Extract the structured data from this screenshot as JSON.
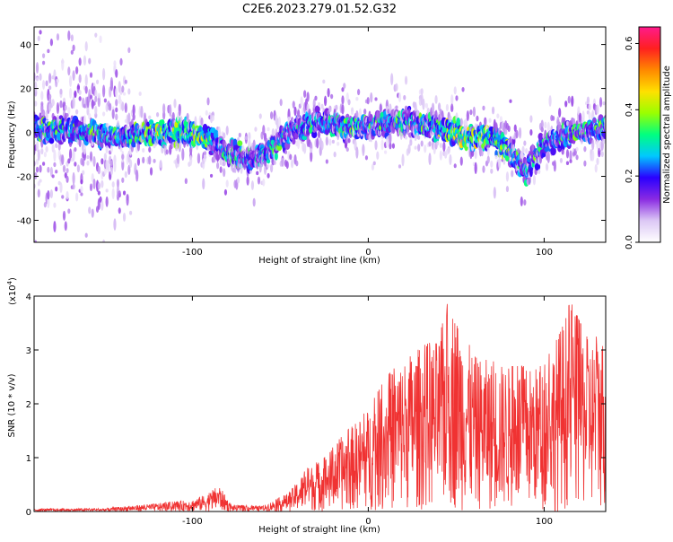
{
  "title": "C2E6.2023.279.01.52.G32",
  "chart_data": [
    {
      "type": "heatmap",
      "title": "C2E6.2023.279.01.52.G32",
      "xlabel": "Height of straight line (km)",
      "ylabel": "Frequency (Hz)",
      "xlim": [
        -190,
        135
      ],
      "ylim": [
        -50,
        48
      ],
      "xticks": [
        -100,
        0,
        100
      ],
      "xtick_labels": [
        "-100",
        "0",
        "100"
      ],
      "yticks": [
        -40,
        -20,
        0,
        20,
        40
      ],
      "ytick_labels": [
        "-40",
        "-20",
        "0",
        "20",
        "40"
      ],
      "colorbar": {
        "label": "Normalized spectral amplitude",
        "range": [
          0.0,
          0.65
        ],
        "ticks": [
          0.0,
          0.2,
          0.4,
          0.6
        ],
        "tick_labels": [
          "0.0",
          "0.2",
          "0.4",
          "0.6"
        ],
        "colormap": [
          "#ffffff",
          "#dcc8f5",
          "#8a2be2",
          "#2a00ff",
          "#00c8ff",
          "#00ff80",
          "#9aff00",
          "#ffe000",
          "#ff8800",
          "#ff2020",
          "#ff1a8c"
        ]
      },
      "band_center_hz": [
        {
          "x": -190,
          "y": 2
        },
        {
          "x": -160,
          "y": 0
        },
        {
          "x": -140,
          "y": -2
        },
        {
          "x": -125,
          "y": 0
        },
        {
          "x": -105,
          "y": 0
        },
        {
          "x": -90,
          "y": -3
        },
        {
          "x": -80,
          "y": -10
        },
        {
          "x": -65,
          "y": -12
        },
        {
          "x": -55,
          "y": -8
        },
        {
          "x": -45,
          "y": 0
        },
        {
          "x": -30,
          "y": 5
        },
        {
          "x": -15,
          "y": 3
        },
        {
          "x": 0,
          "y": 3
        },
        {
          "x": 20,
          "y": 5
        },
        {
          "x": 40,
          "y": 2
        },
        {
          "x": 55,
          "y": -2
        },
        {
          "x": 70,
          "y": -2
        },
        {
          "x": 80,
          "y": -8
        },
        {
          "x": 90,
          "y": -18
        },
        {
          "x": 100,
          "y": -5
        },
        {
          "x": 115,
          "y": 0
        },
        {
          "x": 135,
          "y": 2
        }
      ]
    },
    {
      "type": "line",
      "xlabel": "Height of straight line (km)",
      "ylabel": "SNR (10 * v/v)",
      "y_multiplier": "(x10",
      "y_multiplier_exp": "4",
      "xlim": [
        -190,
        135
      ],
      "ylim": [
        0,
        4
      ],
      "xticks": [
        -100,
        0,
        100
      ],
      "xtick_labels": [
        "-100",
        "0",
        "100"
      ],
      "yticks": [
        0,
        1,
        2,
        3,
        4
      ],
      "ytick_labels": [
        "0",
        "1",
        "2",
        "3",
        "4"
      ],
      "color": "#f03232",
      "envelope": [
        {
          "x": -190,
          "y": 0.05
        },
        {
          "x": -150,
          "y": 0.06
        },
        {
          "x": -120,
          "y": 0.15
        },
        {
          "x": -100,
          "y": 0.22
        },
        {
          "x": -90,
          "y": 0.35
        },
        {
          "x": -85,
          "y": 0.5
        },
        {
          "x": -78,
          "y": 0.12
        },
        {
          "x": -60,
          "y": 0.1
        },
        {
          "x": -45,
          "y": 0.35
        },
        {
          "x": -35,
          "y": 0.8
        },
        {
          "x": -25,
          "y": 1.0
        },
        {
          "x": -15,
          "y": 1.4
        },
        {
          "x": 0,
          "y": 1.9
        },
        {
          "x": 10,
          "y": 2.5
        },
        {
          "x": 25,
          "y": 3.0
        },
        {
          "x": 40,
          "y": 3.2
        },
        {
          "x": 46,
          "y": 4.0
        },
        {
          "x": 60,
          "y": 2.9
        },
        {
          "x": 80,
          "y": 2.7
        },
        {
          "x": 100,
          "y": 2.7
        },
        {
          "x": 115,
          "y": 3.9
        },
        {
          "x": 125,
          "y": 3.2
        },
        {
          "x": 135,
          "y": 3.3
        }
      ]
    }
  ]
}
